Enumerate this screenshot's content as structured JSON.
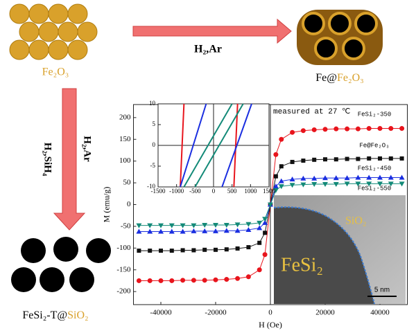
{
  "diagram": {
    "precursor_label": "Fe₂O₃",
    "arrow_right_label": "H₂,Ar",
    "product_prefix": "Fe@",
    "product_shell": "Fe₂O₃",
    "arrow_down_label_left": "H₂,SiH₄",
    "arrow_down_label_right": "H₂,Ar",
    "final_prefix": "FeSi₂-T@",
    "final_shell": "SiO₂"
  },
  "chart_data": [
    {
      "type": "line",
      "xlabel": "H (Oe)",
      "ylabel": "M (emu/g)",
      "annotation": "measured at 27 ℃",
      "xlim": [
        -50000,
        50000
      ],
      "xticks": [
        -40000,
        -20000,
        0,
        20000,
        40000
      ],
      "ylim": [
        -230,
        230
      ],
      "yticks": [
        -200,
        -150,
        -100,
        -50,
        0,
        50,
        100,
        150,
        200
      ],
      "x": [
        -48000,
        -44000,
        -40000,
        -36000,
        -32000,
        -28000,
        -24000,
        -20000,
        -16000,
        -12000,
        -8000,
        -4000,
        -2000,
        0,
        2000,
        4000,
        8000,
        12000,
        16000,
        20000,
        24000,
        28000,
        32000,
        36000,
        40000,
        44000,
        48000
      ],
      "series": [
        {
          "name": "FeSi₂-350",
          "color": "#e8141c",
          "marker": "circle",
          "values": [
            -175,
            -175,
            -175,
            -175,
            -174,
            -174,
            -174,
            -173,
            -172,
            -170,
            -166,
            -150,
            -115,
            0,
            115,
            150,
            166,
            170,
            172,
            173,
            174,
            174,
            174,
            175,
            175,
            175,
            175
          ]
        },
        {
          "name": "Fe@Fe₂O₃",
          "color": "#111111",
          "marker": "square",
          "values": [
            -106,
            -106,
            -106,
            -106,
            -105,
            -105,
            -104,
            -104,
            -103,
            -101,
            -98,
            -88,
            -65,
            0,
            65,
            88,
            98,
            101,
            103,
            104,
            104,
            105,
            105,
            106,
            106,
            106,
            106
          ]
        },
        {
          "name": "FeSi₂-450",
          "color": "#1a2ee0",
          "marker": "triangle",
          "values": [
            -62,
            -62,
            -62,
            -62,
            -62,
            -61,
            -61,
            -61,
            -60,
            -60,
            -58,
            -54,
            -42,
            0,
            42,
            54,
            58,
            60,
            60,
            61,
            61,
            61,
            62,
            62,
            62,
            62,
            62
          ]
        },
        {
          "name": "FeSi₂-550",
          "color": "#138a78",
          "marker": "triangle-down",
          "values": [
            -48,
            -48,
            -48,
            -48,
            -48,
            -48,
            -47,
            -47,
            -47,
            -46,
            -45,
            -42,
            -33,
            0,
            33,
            42,
            45,
            46,
            47,
            47,
            47,
            48,
            48,
            48,
            48,
            48,
            48
          ]
        }
      ]
    },
    {
      "type": "line",
      "xlim": [
        -1500,
        1500
      ],
      "xticks": [
        -1500,
        -1000,
        -500,
        0,
        500,
        1000,
        1500
      ],
      "ylim": [
        -10,
        10
      ],
      "yticks": [
        -10,
        -5,
        0,
        5,
        10
      ],
      "series": [
        {
          "color": "#e8141c",
          "x": [
            -900,
            -800,
            null,
            550,
            650
          ],
          "values": [
            -10,
            10,
            null,
            -10,
            10
          ]
        },
        {
          "color": "#1a2ee0",
          "x": [
            -900,
            -200,
            null,
            230,
            1030
          ],
          "values": [
            -10,
            10,
            null,
            -10,
            10
          ]
        },
        {
          "color": "#138a78",
          "x": [
            -800,
            500,
            null,
            -500,
            800
          ],
          "values": [
            -10,
            10,
            null,
            -10,
            10
          ]
        }
      ]
    }
  ],
  "micrograph": {
    "shell_label": "SiO₂",
    "core_label": "FeSi₂",
    "scale_bar": "5 nm"
  }
}
